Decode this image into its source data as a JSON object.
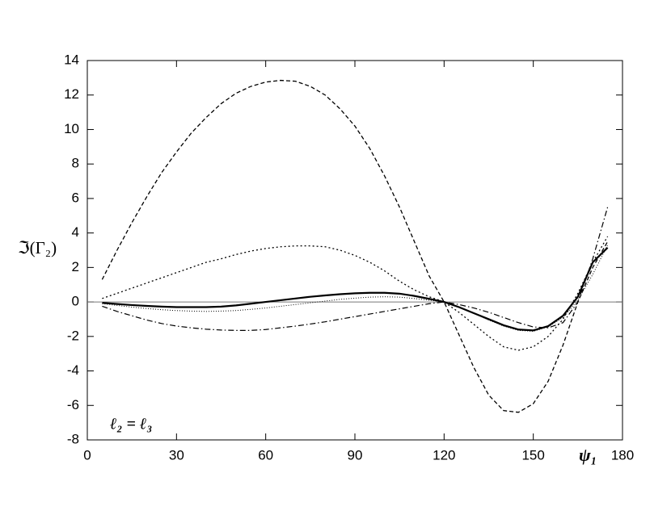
{
  "chart_data": {
    "type": "line",
    "y_label": "ℑ(Γ₂)",
    "x_label": "ψ₁",
    "annotation": "ℓ₂ = ℓ₃",
    "x": [
      5,
      10,
      15,
      20,
      25,
      30,
      35,
      40,
      45,
      50,
      55,
      60,
      65,
      70,
      75,
      80,
      85,
      90,
      95,
      100,
      105,
      110,
      115,
      120,
      125,
      130,
      135,
      140,
      145,
      150,
      155,
      160,
      165,
      170,
      175
    ],
    "series": [
      {
        "color": "#000",
        "dash": "5,3",
        "width": 1.3,
        "values": [
          1.3,
          3.0,
          4.6,
          6.1,
          7.5,
          8.7,
          9.8,
          10.7,
          11.5,
          12.1,
          12.5,
          12.75,
          12.85,
          12.8,
          12.5,
          12.0,
          11.2,
          10.2,
          8.9,
          7.3,
          5.5,
          3.5,
          1.5,
          0,
          -1.9,
          -3.8,
          -5.4,
          -6.3,
          -6.4,
          -5.9,
          -4.6,
          -2.5,
          0,
          2.0,
          3.5
        ]
      },
      {
        "color": "#000",
        "dash": "2,3",
        "width": 1.3,
        "values": [
          0.2,
          0.5,
          0.8,
          1.1,
          1.4,
          1.7,
          2.0,
          2.3,
          2.5,
          2.75,
          2.95,
          3.1,
          3.2,
          3.25,
          3.25,
          3.2,
          3.0,
          2.7,
          2.3,
          1.8,
          1.2,
          0.7,
          0.3,
          0,
          -0.6,
          -1.3,
          -2.0,
          -2.6,
          -2.8,
          -2.6,
          -2.0,
          -1.0,
          0.5,
          2.3,
          3.8
        ]
      },
      {
        "color": "#000",
        "dash": "none",
        "width": 2.2,
        "values": [
          -0.05,
          -0.12,
          -0.18,
          -0.23,
          -0.27,
          -0.3,
          -0.3,
          -0.3,
          -0.27,
          -0.2,
          -0.1,
          0,
          0.1,
          0.2,
          0.3,
          0.38,
          0.45,
          0.5,
          0.53,
          0.53,
          0.48,
          0.35,
          0.18,
          0,
          -0.3,
          -0.65,
          -1.0,
          -1.35,
          -1.6,
          -1.65,
          -1.4,
          -0.8,
          0.3,
          2.3,
          3.15
        ]
      },
      {
        "color": "#000",
        "dash": "1,2",
        "width": 1,
        "values": [
          -0.1,
          -0.2,
          -0.3,
          -0.38,
          -0.45,
          -0.5,
          -0.53,
          -0.55,
          -0.53,
          -0.5,
          -0.43,
          -0.35,
          -0.25,
          -0.15,
          -0.05,
          0.05,
          0.15,
          0.22,
          0.28,
          0.3,
          0.28,
          0.2,
          0.1,
          0,
          -0.3,
          -0.65,
          -1.05,
          -1.4,
          -1.65,
          -1.7,
          -1.45,
          -0.9,
          0.1,
          1.6,
          3.3
        ]
      },
      {
        "color": "#000",
        "dash": "7,3,1.5,3",
        "width": 1.2,
        "values": [
          -0.25,
          -0.55,
          -0.8,
          -1.05,
          -1.25,
          -1.4,
          -1.5,
          -1.58,
          -1.63,
          -1.65,
          -1.65,
          -1.6,
          -1.5,
          -1.4,
          -1.28,
          -1.15,
          -1.0,
          -0.85,
          -0.7,
          -0.55,
          -0.4,
          -0.25,
          -0.1,
          0,
          -0.15,
          -0.35,
          -0.6,
          -0.9,
          -1.2,
          -1.45,
          -1.5,
          -1.2,
          0,
          2.5,
          5.5
        ]
      }
    ],
    "xlim": [
      0,
      180
    ],
    "xticks": [
      0,
      30,
      60,
      90,
      120,
      150,
      180
    ],
    "ylim": [
      -8,
      14
    ],
    "yticks": [
      -8,
      -6,
      -4,
      -2,
      0,
      2,
      4,
      6,
      8,
      10,
      12,
      14
    ],
    "zero_line": true
  }
}
